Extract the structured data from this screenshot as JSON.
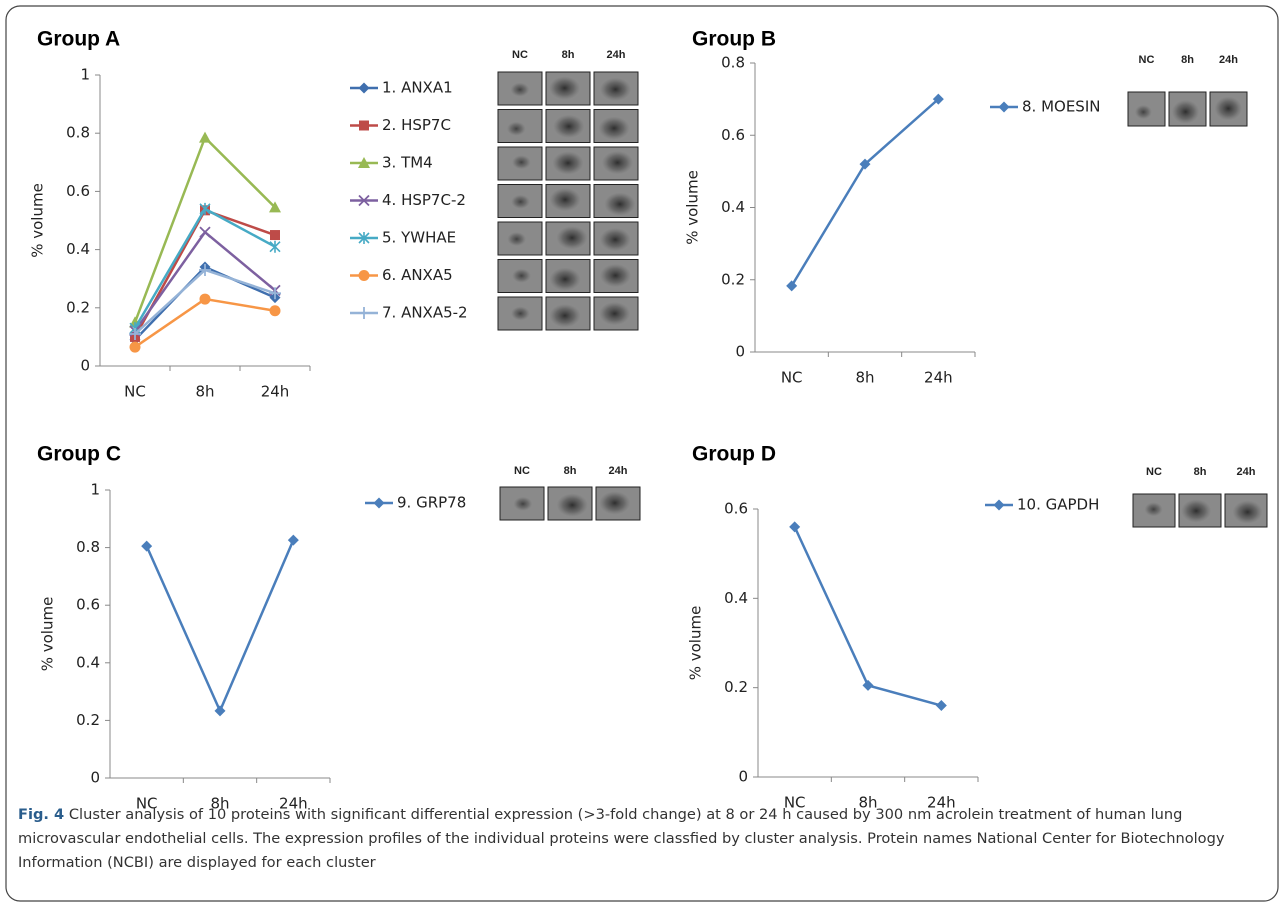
{
  "chart_data": [
    {
      "type": "line",
      "title": "Group  A",
      "ylabel": "% volume",
      "categories": [
        "NC",
        "8h",
        "24h"
      ],
      "ylim": [
        0,
        1
      ],
      "yticks": [
        0,
        0.2,
        0.4,
        0.6,
        0.8,
        1
      ],
      "blot_columns": [
        "NC",
        "8h",
        "24h"
      ],
      "series": [
        {
          "name": "1. ANXA1",
          "color": "#3f6fae",
          "marker": "diamond",
          "values": [
            0.09,
            0.34,
            0.235
          ]
        },
        {
          "name": "2. HSP7C",
          "color": "#be4b48",
          "marker": "square",
          "values": [
            0.1,
            0.535,
            0.45
          ]
        },
        {
          "name": "3. TM4",
          "color": "#98b954",
          "marker": "triangle",
          "values": [
            0.15,
            0.785,
            0.545
          ]
        },
        {
          "name": "4. HSP7C-2",
          "color": "#7d60a0",
          "marker": "x",
          "values": [
            0.12,
            0.46,
            0.26
          ]
        },
        {
          "name": "5. YWHAE",
          "color": "#46aac5",
          "marker": "asterisk",
          "values": [
            0.13,
            0.54,
            0.41
          ]
        },
        {
          "name": "6. ANXA5",
          "color": "#f79646",
          "marker": "circle",
          "values": [
            0.065,
            0.23,
            0.19
          ]
        },
        {
          "name": "7. ANXA5-2",
          "color": "#95b3d7",
          "marker": "plus",
          "values": [
            0.11,
            0.33,
            0.25
          ]
        }
      ]
    },
    {
      "type": "line",
      "title": "Group  B",
      "ylabel": "% volume",
      "categories": [
        "NC",
        "8h",
        "24h"
      ],
      "ylim": [
        0,
        0.8
      ],
      "yticks": [
        0,
        0.2,
        0.4,
        0.6,
        0.8
      ],
      "blot_columns": [
        "NC",
        "8h",
        "24h"
      ],
      "series": [
        {
          "name": "8. MOESIN",
          "color": "#4a7ebb",
          "marker": "diamond",
          "values": [
            0.183,
            0.52,
            0.7
          ]
        }
      ]
    },
    {
      "type": "line",
      "title": "Group  C",
      "ylabel": "% volume",
      "categories": [
        "NC",
        "8h",
        "24h"
      ],
      "ylim": [
        0,
        1
      ],
      "yticks": [
        0,
        0.2,
        0.4,
        0.6,
        0.8,
        1
      ],
      "blot_columns": [
        "NC",
        "8h",
        "24h"
      ],
      "series": [
        {
          "name": "9. GRP78",
          "color": "#4a7ebb",
          "marker": "diamond",
          "values": [
            0.805,
            0.233,
            0.826
          ]
        }
      ]
    },
    {
      "type": "line",
      "title": "Group  D",
      "ylabel": "% volume",
      "categories": [
        "NC",
        "8h",
        "24h"
      ],
      "ylim": [
        0,
        0.6
      ],
      "yticks": [
        0,
        0.2,
        0.4,
        0.6
      ],
      "blot_columns": [
        "NC",
        "8h",
        "24h"
      ],
      "series": [
        {
          "name": "10. GAPDH",
          "color": "#4a7ebb",
          "marker": "diamond",
          "values": [
            0.56,
            0.205,
            0.16
          ]
        }
      ]
    }
  ],
  "caption": {
    "label": "Fig. 4",
    "text": "Cluster analysis of 10 proteins with significant differential expression (>3-fold change) at 8 or 24 h caused by 300 nm acrolein treatment of human lung microvascular endothelial cells. The expression profiles of the individual proteins were classfied by cluster analysis. Protein names National Center for Biotechnology Information (NCBI) are displayed for each cluster"
  }
}
